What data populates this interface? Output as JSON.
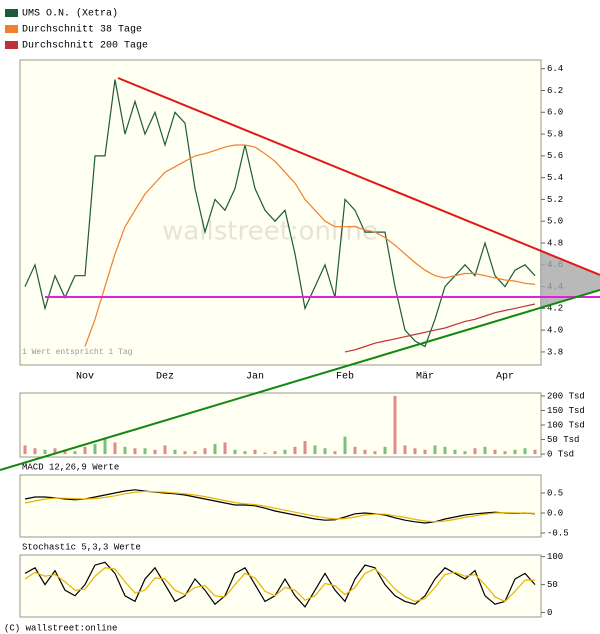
{
  "chart_data": [
    {
      "type": "line",
      "legend": "top-left",
      "note": "1 Wert entspricht 1 Tag",
      "watermark": "wallstreet:online",
      "categories": [
        null,
        null,
        null,
        null,
        null,
        null,
        "Nov",
        null,
        null,
        null,
        null,
        null,
        null,
        null,
        "Dez",
        null,
        null,
        null,
        null,
        null,
        null,
        null,
        null,
        "Jan",
        null,
        null,
        null,
        null,
        null,
        null,
        null,
        null,
        "Feb",
        null,
        null,
        null,
        null,
        null,
        null,
        null,
        "Mär",
        null,
        null,
        null,
        null,
        null,
        null,
        null,
        "Apr",
        null,
        null,
        null
      ],
      "ylim": [
        3.68,
        6.48
      ],
      "yticks": [
        3.8,
        {
          "value": 4,
          "label": "4.0"
        },
        4.2,
        4.4,
        4.6,
        4.8,
        {
          "value": 5,
          "label": "5.0"
        },
        5.2,
        5.4,
        5.6,
        5.8,
        {
          "value": 6,
          "label": "6.0"
        },
        6.2,
        6.4
      ],
      "series": [
        {
          "name": "UMS O.N. (Xetra)",
          "color": "#1e5a3c",
          "values": [
            4.4,
            4.6,
            4.2,
            4.5,
            4.3,
            4.5,
            4.5,
            5.6,
            5.6,
            6.3,
            5.8,
            6.1,
            5.8,
            6.0,
            5.7,
            6.0,
            5.9,
            5.3,
            4.9,
            5.2,
            5.1,
            5.3,
            5.7,
            5.3,
            5.1,
            5.0,
            5.1,
            4.7,
            4.2,
            4.4,
            4.6,
            4.3,
            5.2,
            5.1,
            4.9,
            4.9,
            4.9,
            4.4,
            4.0,
            3.9,
            3.85,
            4.1,
            4.4,
            4.5,
            4.6,
            4.5,
            4.8,
            4.5,
            4.4,
            4.55,
            4.6,
            4.5
          ]
        },
        {
          "name": "Durchschnitt 38 Tage",
          "color": "#f07f30",
          "values": [
            null,
            null,
            null,
            null,
            null,
            null,
            3.85,
            4.1,
            4.4,
            4.7,
            4.95,
            5.1,
            5.25,
            5.35,
            5.45,
            5.5,
            5.55,
            5.6,
            5.62,
            5.65,
            5.68,
            5.7,
            5.7,
            5.68,
            5.62,
            5.55,
            5.45,
            5.35,
            5.2,
            5.1,
            5.0,
            4.95,
            4.95,
            4.95,
            4.92,
            4.9,
            4.85,
            4.78,
            4.7,
            4.62,
            4.55,
            4.5,
            4.48,
            4.5,
            4.52,
            4.52,
            4.5,
            4.48,
            4.46,
            4.45,
            4.43,
            4.42
          ]
        },
        {
          "name": "Durchschnitt 200 Tage",
          "color": "#c0303a",
          "values": [
            null,
            null,
            null,
            null,
            null,
            null,
            null,
            null,
            null,
            null,
            null,
            null,
            null,
            null,
            null,
            null,
            null,
            null,
            null,
            null,
            null,
            null,
            null,
            null,
            null,
            null,
            null,
            null,
            null,
            null,
            null,
            null,
            3.8,
            3.82,
            3.85,
            3.88,
            3.9,
            3.92,
            3.94,
            3.96,
            3.98,
            4.0,
            4.02,
            4.05,
            4.08,
            4.1,
            4.13,
            4.16,
            4.18,
            4.2,
            4.22,
            4.24
          ]
        }
      ]
    },
    {
      "type": "bar",
      "ylim": [
        -10,
        210
      ],
      "yticks": [
        {
          "value": 0,
          "label": "0 Tsd"
        },
        {
          "value": 50,
          "label": "50 Tsd"
        },
        {
          "value": 100,
          "label": "100 Tsd"
        },
        {
          "value": 150,
          "label": "150 Tsd"
        },
        {
          "value": 200,
          "label": "200 Tsd"
        }
      ],
      "series": [
        {
          "values": [
            30,
            20,
            15,
            20,
            15,
            10,
            25,
            35,
            55,
            40,
            25,
            20,
            20,
            15,
            30,
            15,
            10,
            10,
            20,
            35,
            40,
            15,
            10,
            15,
            5,
            10,
            15,
            25,
            45,
            30,
            20,
            10,
            60,
            25,
            15,
            10,
            25,
            200,
            30,
            20,
            15,
            30,
            25,
            15,
            10,
            20,
            25,
            15,
            10,
            15,
            20,
            15
          ],
          "colors": [
            "#e08a8a",
            "#e08a8a",
            "#7cc07c",
            "#e08a8a",
            "#e08a8a",
            "#7cc07c",
            "#e08a8a",
            "#7cc07c",
            "#7cc07c",
            "#e08a8a",
            "#7cc07c",
            "#e08a8a",
            "#7cc07c",
            "#e08a8a",
            "#e08a8a",
            "#7cc07c",
            "#e08a8a",
            "#e08a8a",
            "#e08a8a",
            "#7cc07c",
            "#e08a8a",
            "#7cc07c",
            "#7cc07c",
            "#e08a8a",
            "#e08a8a",
            "#e08a8a",
            "#7cc07c",
            "#e08a8a",
            "#e08a8a",
            "#7cc07c",
            "#7cc07c",
            "#e08a8a",
            "#7cc07c",
            "#e08a8a",
            "#e08a8a",
            "#e08a8a",
            "#7cc07c",
            "#e08a8a",
            "#e08a8a",
            "#e08a8a",
            "#e08a8a",
            "#7cc07c",
            "#7cc07c",
            "#7cc07c",
            "#7cc07c",
            "#e08a8a",
            "#7cc07c",
            "#e08a8a",
            "#e08a8a",
            "#7cc07c",
            "#7cc07c",
            "#e08a8a"
          ]
        }
      ]
    },
    {
      "type": "line",
      "title": "MACD 12,26,9 Werte",
      "ylim": [
        -0.6,
        0.95
      ],
      "yticks": [
        -0.5,
        {
          "value": 0,
          "label": "0.0"
        },
        0.5
      ],
      "series": [
        {
          "color": "#000000",
          "values": [
            0.35,
            0.4,
            0.4,
            0.38,
            0.35,
            0.33,
            0.35,
            0.4,
            0.45,
            0.5,
            0.55,
            0.58,
            0.55,
            0.52,
            0.5,
            0.48,
            0.45,
            0.4,
            0.35,
            0.3,
            0.25,
            0.2,
            0.2,
            0.18,
            0.12,
            0.05,
            0.0,
            -0.05,
            -0.1,
            -0.15,
            -0.18,
            -0.17,
            -0.1,
            -0.02,
            0.0,
            -0.02,
            -0.05,
            -0.12,
            -0.18,
            -0.22,
            -0.25,
            -0.22,
            -0.15,
            -0.1,
            -0.05,
            -0.02,
            0.0,
            0.02,
            0.0,
            -0.01,
            0.0,
            -0.02
          ]
        },
        {
          "color": "#e8b400",
          "values": [
            0.25,
            0.3,
            0.35,
            0.37,
            0.37,
            0.36,
            0.35,
            0.36,
            0.39,
            0.43,
            0.48,
            0.52,
            0.54,
            0.53,
            0.52,
            0.5,
            0.48,
            0.45,
            0.41,
            0.36,
            0.31,
            0.26,
            0.23,
            0.21,
            0.17,
            0.12,
            0.07,
            0.02,
            -0.03,
            -0.08,
            -0.12,
            -0.15,
            -0.14,
            -0.1,
            -0.05,
            -0.03,
            -0.03,
            -0.07,
            -0.11,
            -0.16,
            -0.2,
            -0.22,
            -0.2,
            -0.16,
            -0.11,
            -0.07,
            -0.03,
            0.0,
            0.01,
            0.0,
            0.0,
            -0.01
          ]
        }
      ]
    },
    {
      "type": "line",
      "title": "Stochastic 5,3,3 Werte",
      "ylim": [
        -8,
        103
      ],
      "yticks": [
        0,
        50,
        100
      ],
      "series": [
        {
          "color": "#000000",
          "values": [
            70,
            80,
            50,
            75,
            40,
            30,
            50,
            85,
            90,
            70,
            30,
            20,
            60,
            80,
            50,
            20,
            30,
            60,
            40,
            15,
            30,
            70,
            80,
            50,
            20,
            30,
            60,
            30,
            10,
            40,
            70,
            40,
            20,
            60,
            85,
            80,
            50,
            30,
            20,
            15,
            30,
            60,
            80,
            70,
            60,
            75,
            30,
            15,
            20,
            60,
            70,
            50
          ]
        },
        {
          "color": "#e8b400",
          "values": [
            60,
            72,
            65,
            68,
            55,
            40,
            42,
            65,
            80,
            78,
            55,
            35,
            40,
            62,
            60,
            40,
            32,
            45,
            48,
            30,
            28,
            50,
            70,
            62,
            38,
            30,
            45,
            40,
            22,
            30,
            52,
            48,
            32,
            45,
            70,
            78,
            62,
            42,
            28,
            20,
            25,
            45,
            68,
            72,
            65,
            68,
            50,
            28,
            20,
            38,
            58,
            58
          ]
        }
      ]
    }
  ],
  "footer": "(C) wallstreet:online"
}
